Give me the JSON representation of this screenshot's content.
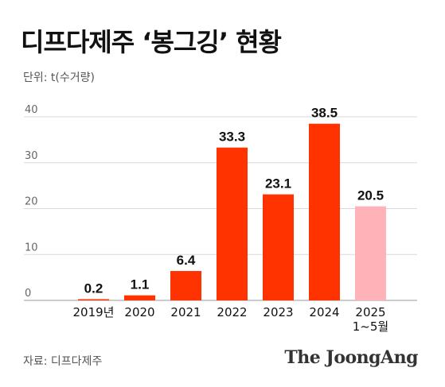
{
  "title": "디프다제주 ‘봉그깅’ 현황",
  "unit_label": "단위: t(수거량)",
  "source": "자료: 디프다제주",
  "brand": "The JoongAng",
  "colors": {
    "bar": "#ff3300",
    "bar_partial": "#ffb3b8",
    "grid": "#d9d9d9"
  },
  "chart_data": {
    "type": "bar",
    "title": "디프다제주 ‘봉그깅’ 현황",
    "ylabel": "단위: t(수거량)",
    "ylim": [
      0,
      40
    ],
    "yticks": [
      0,
      10,
      20,
      30,
      40
    ],
    "grid": true,
    "categories": [
      {
        "line1": "2019년",
        "line2": ""
      },
      {
        "line1": "2020",
        "line2": ""
      },
      {
        "line1": "2021",
        "line2": ""
      },
      {
        "line1": "2022",
        "line2": ""
      },
      {
        "line1": "2023",
        "line2": ""
      },
      {
        "line1": "2024",
        "line2": ""
      },
      {
        "line1": "2025",
        "line2": "1~5월"
      }
    ],
    "values": [
      0.2,
      1.1,
      6.4,
      33.3,
      23.1,
      38.5,
      20.5
    ],
    "data_labels": [
      "0.2",
      "1.1",
      "6.4",
      "33.3",
      "23.1",
      "38.5",
      "20.5"
    ],
    "partial": [
      false,
      false,
      false,
      false,
      false,
      false,
      true
    ]
  }
}
